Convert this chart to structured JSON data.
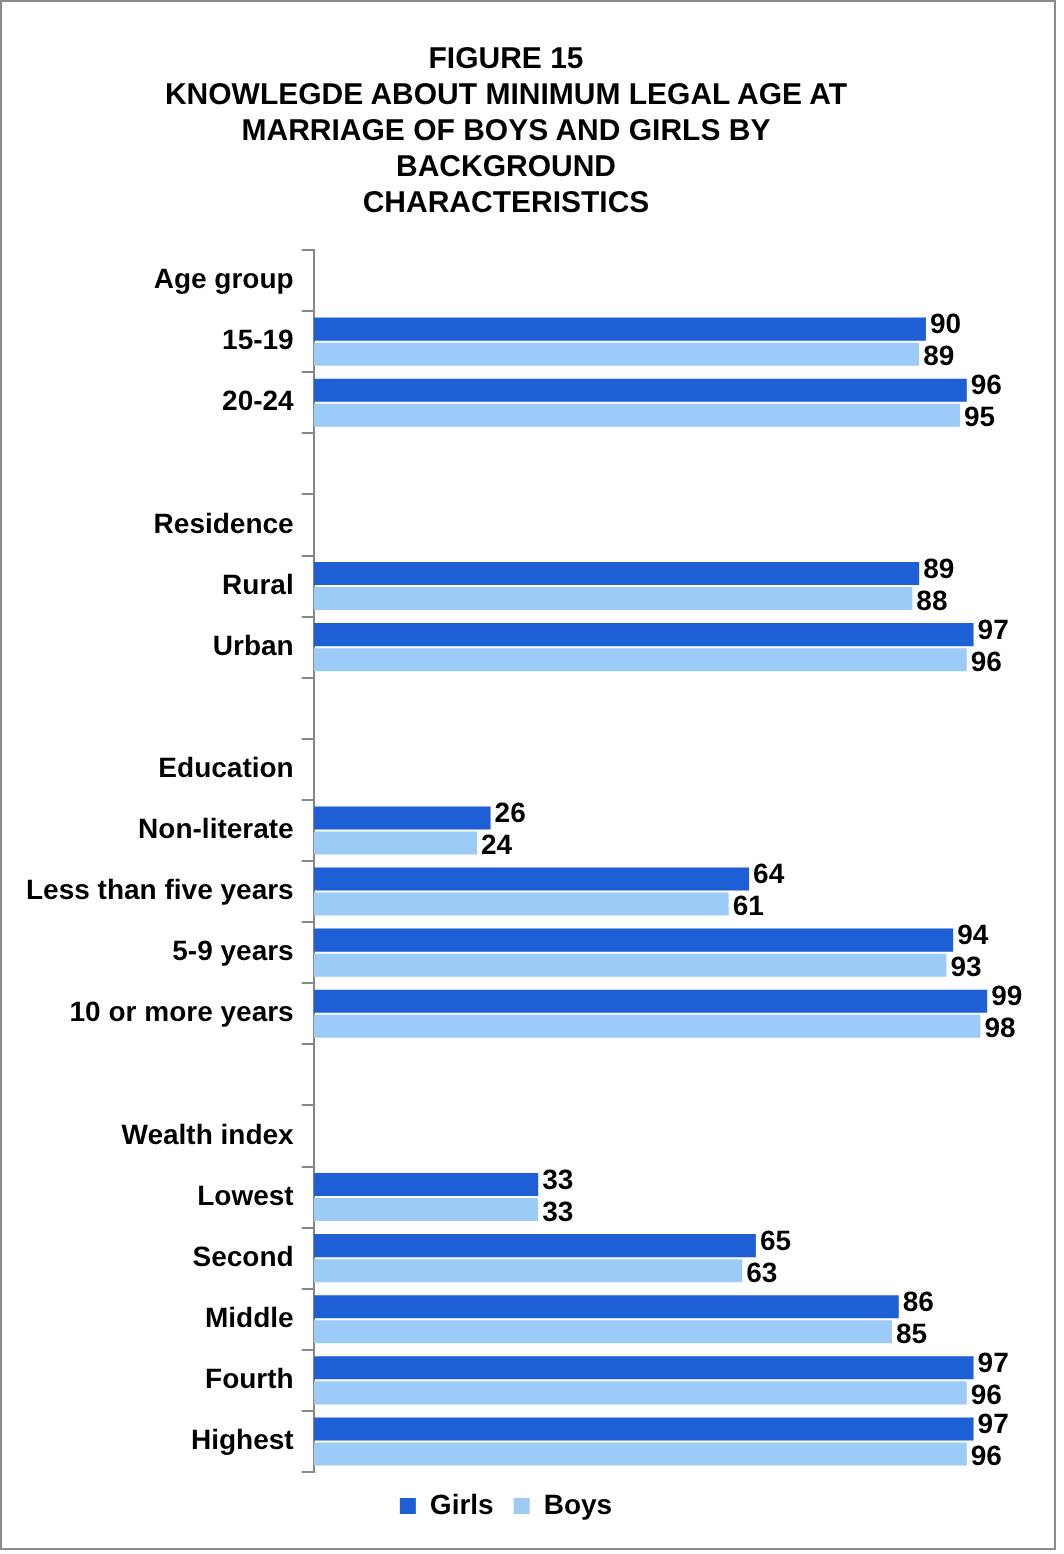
{
  "chart_data": {
    "type": "bar",
    "orientation": "horizontal",
    "title": "FIGURE 15\nKNOWLEGDE ABOUT MINIMUM LEGAL AGE AT\nMARRIAGE OF BOYS AND GIRLS BY\nBACKGROUND\nCHARACTERISTICS",
    "categories": [
      "Age group",
      "15-19",
      "20-24",
      null,
      "Residence",
      "Rural",
      "Urban",
      null,
      "Education",
      "Non-literate",
      "Less than five years",
      "5-9 years",
      "10 or more years",
      null,
      "Wealth index",
      "Lowest",
      "Second",
      "Middle",
      "Fourth",
      "Highest"
    ],
    "series": [
      {
        "name": "Girls",
        "color": "#1f5fd6",
        "values": [
          null,
          90,
          96,
          null,
          null,
          89,
          97,
          null,
          null,
          26,
          64,
          94,
          99,
          null,
          null,
          33,
          65,
          86,
          97,
          97
        ]
      },
      {
        "name": "Boys",
        "color": "#9ccbf7",
        "values": [
          null,
          89,
          95,
          null,
          null,
          88,
          96,
          null,
          null,
          24,
          61,
          93,
          98,
          null,
          null,
          33,
          63,
          85,
          96,
          96
        ]
      }
    ],
    "xlim": [
      0,
      100
    ],
    "tick_labels": "y",
    "legend": "bottom",
    "data_labels": true
  }
}
